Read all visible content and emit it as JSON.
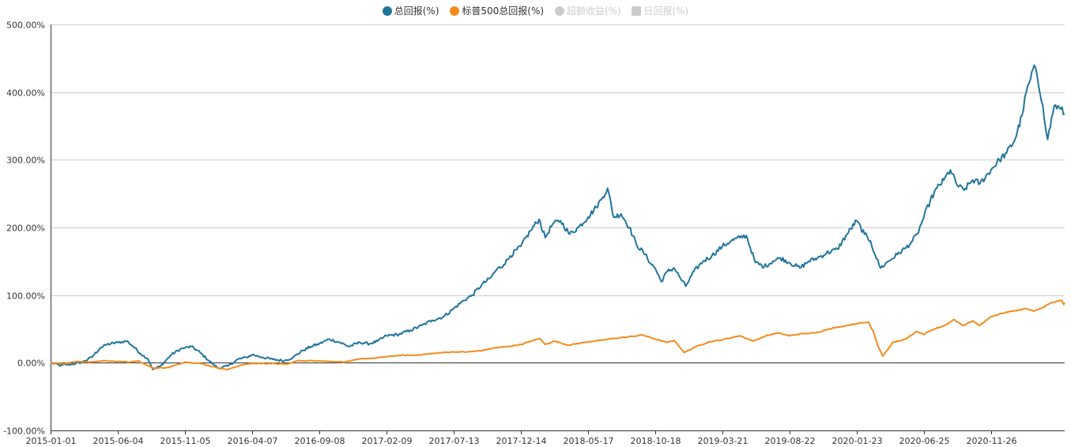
{
  "legend": {
    "items": [
      {
        "label": "总回报(%)",
        "color": "#21759b",
        "active": true,
        "shape": "circle"
      },
      {
        "label": "标普500总回报(%)",
        "color": "#f28c1e",
        "active": true,
        "shape": "circle"
      },
      {
        "label": "超额收益(%)",
        "color": "#cccccc",
        "active": false,
        "shape": "circle"
      },
      {
        "label": "日回报(%)",
        "color": "#cccccc",
        "active": false,
        "shape": "square"
      }
    ]
  },
  "chart_data": {
    "type": "line",
    "title": "",
    "xlabel": "",
    "ylabel": "",
    "x_tick_labels": [
      "2015-01-01",
      "2015-06-04",
      "2015-11-05",
      "2016-04-07",
      "2016-09-08",
      "2017-02-09",
      "2017-07-13",
      "2017-12-14",
      "2018-05-17",
      "2018-10-18",
      "2019-03-21",
      "2019-08-22",
      "2020-01-23",
      "2020-06-25",
      "2020-11-26"
    ],
    "x_range": [
      "2015-01-01",
      "2021-05-14"
    ],
    "y_tick_labels": [
      "-100.00%",
      "0.00%",
      "100.00%",
      "200.00%",
      "300.00%",
      "400.00%",
      "500.00%"
    ],
    "ylim": [
      -100,
      500
    ],
    "grid": true,
    "legend_position": "top-center",
    "series": [
      {
        "name": "总回报(%)",
        "color": "#21759b",
        "points": [
          [
            "2015-01-01",
            0
          ],
          [
            "2015-01-25",
            -4
          ],
          [
            "2015-02-20",
            -2
          ],
          [
            "2015-03-15",
            1
          ],
          [
            "2015-04-05",
            8
          ],
          [
            "2015-04-25",
            22
          ],
          [
            "2015-05-10",
            27
          ],
          [
            "2015-06-04",
            30
          ],
          [
            "2015-06-25",
            32
          ],
          [
            "2015-07-10",
            24
          ],
          [
            "2015-07-25",
            14
          ],
          [
            "2015-08-12",
            6
          ],
          [
            "2015-08-24",
            -10
          ],
          [
            "2015-09-10",
            -5
          ],
          [
            "2015-10-05",
            12
          ],
          [
            "2015-10-25",
            20
          ],
          [
            "2015-11-05",
            22
          ],
          [
            "2015-11-20",
            24
          ],
          [
            "2015-12-10",
            15
          ],
          [
            "2016-01-01",
            2
          ],
          [
            "2016-01-20",
            -8
          ],
          [
            "2016-02-11",
            -5
          ],
          [
            "2016-03-05",
            5
          ],
          [
            "2016-03-25",
            8
          ],
          [
            "2016-04-07",
            12
          ],
          [
            "2016-05-01",
            8
          ],
          [
            "2016-05-25",
            5
          ],
          [
            "2016-06-20",
            3
          ],
          [
            "2016-07-10",
            8
          ],
          [
            "2016-08-01",
            18
          ],
          [
            "2016-08-20",
            24
          ],
          [
            "2016-09-08",
            28
          ],
          [
            "2016-10-01",
            35
          ],
          [
            "2016-10-25",
            30
          ],
          [
            "2016-11-15",
            24
          ],
          [
            "2016-12-10",
            30
          ],
          [
            "2017-01-01",
            28
          ],
          [
            "2017-01-20",
            32
          ],
          [
            "2017-02-09",
            40
          ],
          [
            "2017-03-10",
            42
          ],
          [
            "2017-04-05",
            48
          ],
          [
            "2017-05-01",
            55
          ],
          [
            "2017-05-25",
            63
          ],
          [
            "2017-06-20",
            68
          ],
          [
            "2017-07-13",
            80
          ],
          [
            "2017-08-05",
            92
          ],
          [
            "2017-08-25",
            100
          ],
          [
            "2017-09-15",
            115
          ],
          [
            "2017-10-05",
            125
          ],
          [
            "2017-10-20",
            138
          ],
          [
            "2017-11-05",
            145
          ],
          [
            "2017-11-20",
            158
          ],
          [
            "2017-12-14",
            172
          ],
          [
            "2018-01-05",
            195
          ],
          [
            "2018-01-25",
            212
          ],
          [
            "2018-02-08",
            185
          ],
          [
            "2018-02-25",
            205
          ],
          [
            "2018-03-15",
            210
          ],
          [
            "2018-04-05",
            190
          ],
          [
            "2018-04-25",
            200
          ],
          [
            "2018-05-17",
            215
          ],
          [
            "2018-06-05",
            230
          ],
          [
            "2018-06-20",
            245
          ],
          [
            "2018-07-01",
            258
          ],
          [
            "2018-07-15",
            215
          ],
          [
            "2018-08-01",
            220
          ],
          [
            "2018-08-20",
            200
          ],
          [
            "2018-09-05",
            175
          ],
          [
            "2018-09-25",
            160
          ],
          [
            "2018-10-10",
            145
          ],
          [
            "2018-10-18",
            140
          ],
          [
            "2018-11-01",
            120
          ],
          [
            "2018-11-15",
            135
          ],
          [
            "2018-12-01",
            140
          ],
          [
            "2018-12-15",
            125
          ],
          [
            "2018-12-27",
            113
          ],
          [
            "2019-01-15",
            135
          ],
          [
            "2019-02-05",
            150
          ],
          [
            "2019-02-25",
            158
          ],
          [
            "2019-03-21",
            172
          ],
          [
            "2019-04-10",
            180
          ],
          [
            "2019-04-30",
            185
          ],
          [
            "2019-05-15",
            188
          ],
          [
            "2019-06-05",
            148
          ],
          [
            "2019-06-25",
            142
          ],
          [
            "2019-07-15",
            150
          ],
          [
            "2019-08-01",
            155
          ],
          [
            "2019-08-22",
            148
          ],
          [
            "2019-09-15",
            140
          ],
          [
            "2019-10-05",
            150
          ],
          [
            "2019-10-25",
            155
          ],
          [
            "2019-11-15",
            162
          ],
          [
            "2019-12-10",
            168
          ],
          [
            "2020-01-01",
            190
          ],
          [
            "2020-01-23",
            210
          ],
          [
            "2020-02-10",
            190
          ],
          [
            "2020-02-24",
            180
          ],
          [
            "2020-03-05",
            160
          ],
          [
            "2020-03-18",
            140
          ],
          [
            "2020-04-05",
            150
          ],
          [
            "2020-04-25",
            160
          ],
          [
            "2020-05-15",
            170
          ],
          [
            "2020-05-30",
            180
          ],
          [
            "2020-06-10",
            190
          ],
          [
            "2020-06-25",
            215
          ],
          [
            "2020-07-10",
            240
          ],
          [
            "2020-07-25",
            258
          ],
          [
            "2020-08-10",
            270
          ],
          [
            "2020-08-25",
            285
          ],
          [
            "2020-09-10",
            262
          ],
          [
            "2020-09-25",
            255
          ],
          [
            "2020-10-15",
            270
          ],
          [
            "2020-11-01",
            265
          ],
          [
            "2020-11-26",
            285
          ],
          [
            "2020-12-15",
            300
          ],
          [
            "2021-01-01",
            310
          ],
          [
            "2021-01-20",
            330
          ],
          [
            "2021-02-05",
            365
          ],
          [
            "2021-02-15",
            400
          ],
          [
            "2021-02-25",
            420
          ],
          [
            "2021-03-05",
            440
          ],
          [
            "2021-03-15",
            410
          ],
          [
            "2021-03-25",
            380
          ],
          [
            "2021-04-05",
            330
          ],
          [
            "2021-04-20",
            380
          ],
          [
            "2021-05-05",
            375
          ],
          [
            "2021-05-14",
            368
          ]
        ]
      },
      {
        "name": "标普500总回报(%)",
        "color": "#f28c1e",
        "points": [
          [
            "2015-01-01",
            0
          ],
          [
            "2015-02-01",
            -2
          ],
          [
            "2015-03-01",
            2
          ],
          [
            "2015-04-01",
            1
          ],
          [
            "2015-05-01",
            3
          ],
          [
            "2015-06-04",
            2
          ],
          [
            "2015-07-01",
            1
          ],
          [
            "2015-07-20",
            3
          ],
          [
            "2015-08-24",
            -8
          ],
          [
            "2015-09-28",
            -7
          ],
          [
            "2015-11-05",
            1
          ],
          [
            "2015-12-10",
            -1
          ],
          [
            "2016-01-15",
            -7
          ],
          [
            "2016-02-11",
            -10
          ],
          [
            "2016-03-15",
            -3
          ],
          [
            "2016-04-07",
            -1
          ],
          [
            "2016-05-15",
            -1
          ],
          [
            "2016-06-27",
            -2
          ],
          [
            "2016-07-20",
            3
          ],
          [
            "2016-09-08",
            3
          ],
          [
            "2016-10-01",
            2
          ],
          [
            "2016-11-04",
            1
          ],
          [
            "2016-12-15",
            6
          ],
          [
            "2017-01-15",
            7
          ],
          [
            "2017-02-09",
            9
          ],
          [
            "2017-03-15",
            11
          ],
          [
            "2017-04-15",
            11
          ],
          [
            "2017-05-15",
            13
          ],
          [
            "2017-06-15",
            15
          ],
          [
            "2017-07-13",
            16
          ],
          [
            "2017-08-15",
            16
          ],
          [
            "2017-09-15",
            18
          ],
          [
            "2017-10-15",
            22
          ],
          [
            "2017-11-15",
            24
          ],
          [
            "2017-12-14",
            27
          ],
          [
            "2018-01-26",
            36
          ],
          [
            "2018-02-08",
            27
          ],
          [
            "2018-03-01",
            32
          ],
          [
            "2018-04-02",
            26
          ],
          [
            "2018-05-17",
            31
          ],
          [
            "2018-06-15",
            33
          ],
          [
            "2018-07-15",
            36
          ],
          [
            "2018-08-15",
            38
          ],
          [
            "2018-09-20",
            41
          ],
          [
            "2018-10-18",
            35
          ],
          [
            "2018-11-15",
            30
          ],
          [
            "2018-12-01",
            33
          ],
          [
            "2018-12-24",
            15
          ],
          [
            "2019-01-20",
            24
          ],
          [
            "2019-02-20",
            31
          ],
          [
            "2019-03-21",
            34
          ],
          [
            "2019-04-30",
            40
          ],
          [
            "2019-05-31",
            32
          ],
          [
            "2019-06-30",
            40
          ],
          [
            "2019-07-26",
            44
          ],
          [
            "2019-08-22",
            40
          ],
          [
            "2019-09-20",
            43
          ],
          [
            "2019-10-20",
            44
          ],
          [
            "2019-11-20",
            50
          ],
          [
            "2019-12-31",
            55
          ],
          [
            "2020-01-23",
            58
          ],
          [
            "2020-02-19",
            60
          ],
          [
            "2020-03-01",
            47
          ],
          [
            "2020-03-12",
            25
          ],
          [
            "2020-03-23",
            10
          ],
          [
            "2020-04-15",
            30
          ],
          [
            "2020-05-15",
            35
          ],
          [
            "2020-06-08",
            46
          ],
          [
            "2020-06-25",
            42
          ],
          [
            "2020-07-20",
            50
          ],
          [
            "2020-08-15",
            56
          ],
          [
            "2020-09-02",
            64
          ],
          [
            "2020-09-23",
            55
          ],
          [
            "2020-10-15",
            62
          ],
          [
            "2020-10-30",
            55
          ],
          [
            "2020-11-26",
            68
          ],
          [
            "2020-12-20",
            73
          ],
          [
            "2021-01-20",
            77
          ],
          [
            "2021-02-15",
            80
          ],
          [
            "2021-03-04",
            76
          ],
          [
            "2021-03-25",
            82
          ],
          [
            "2021-04-15",
            89
          ],
          [
            "2021-05-07",
            92
          ],
          [
            "2021-05-12",
            86
          ],
          [
            "2021-05-14",
            89
          ]
        ]
      }
    ]
  }
}
